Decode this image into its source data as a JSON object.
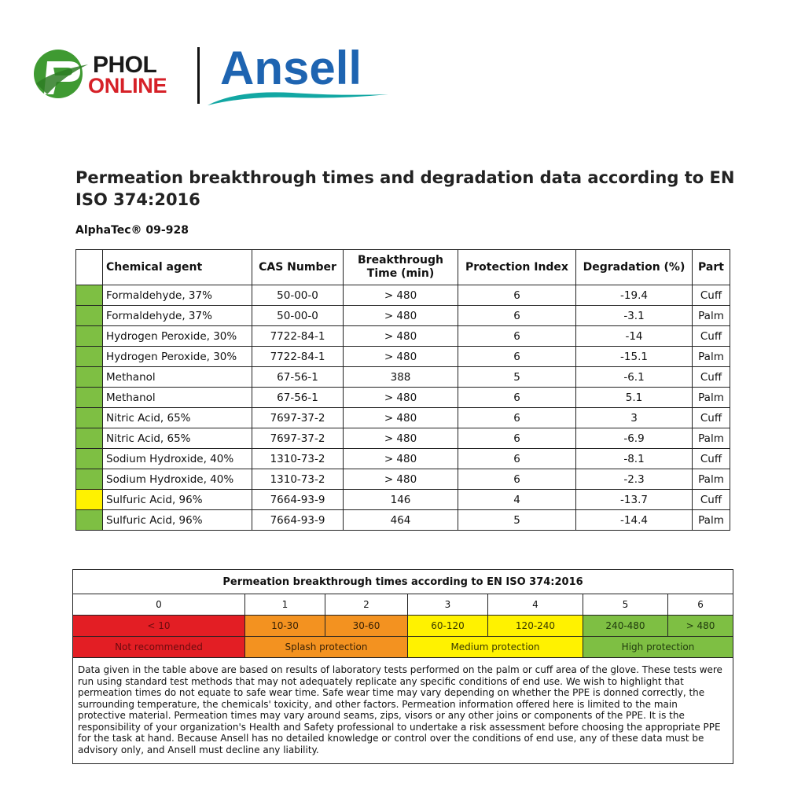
{
  "logos": {
    "phol_line1": "PHOL",
    "phol_line2": "ONLINE",
    "ansell": "Ansell",
    "colors": {
      "phol_green": "#3f9a32",
      "phol_red": "#d62128",
      "ansell_blue": "#1e64b1",
      "ansell_teal": "#12a7a3"
    }
  },
  "title": "Permeation breakthrough times and degradation data according to EN ISO 374:2016",
  "product": "AlphaTec® 09-928",
  "table": {
    "headers": {
      "chemical": "Chemical agent",
      "cas": "CAS Number",
      "breakthrough": "Breakthrough Time (min)",
      "protection": "Protection Index",
      "degradation": "Degradation (%)",
      "part": "Part"
    },
    "rows": [
      {
        "swatch": "#7ebf43",
        "chemical": "Formaldehyde, 37%",
        "cas": "50-00-0",
        "breakthrough": "> 480",
        "protection": "6",
        "degradation": "-19.4",
        "part": "Cuff"
      },
      {
        "swatch": "#7ebf43",
        "chemical": "Formaldehyde, 37%",
        "cas": "50-00-0",
        "breakthrough": "> 480",
        "protection": "6",
        "degradation": "-3.1",
        "part": "Palm"
      },
      {
        "swatch": "#7ebf43",
        "chemical": "Hydrogen Peroxide, 30%",
        "cas": "7722-84-1",
        "breakthrough": "> 480",
        "protection": "6",
        "degradation": "-14",
        "part": "Cuff"
      },
      {
        "swatch": "#7ebf43",
        "chemical": "Hydrogen Peroxide, 30%",
        "cas": "7722-84-1",
        "breakthrough": "> 480",
        "protection": "6",
        "degradation": "-15.1",
        "part": "Palm"
      },
      {
        "swatch": "#7ebf43",
        "chemical": "Methanol",
        "cas": "67-56-1",
        "breakthrough": "388",
        "protection": "5",
        "degradation": "-6.1",
        "part": "Cuff"
      },
      {
        "swatch": "#7ebf43",
        "chemical": "Methanol",
        "cas": "67-56-1",
        "breakthrough": "> 480",
        "protection": "6",
        "degradation": "5.1",
        "part": "Palm"
      },
      {
        "swatch": "#7ebf43",
        "chemical": "Nitric Acid, 65%",
        "cas": "7697-37-2",
        "breakthrough": "> 480",
        "protection": "6",
        "degradation": "3",
        "part": "Cuff"
      },
      {
        "swatch": "#7ebf43",
        "chemical": "Nitric Acid, 65%",
        "cas": "7697-37-2",
        "breakthrough": "> 480",
        "protection": "6",
        "degradation": "-6.9",
        "part": "Palm"
      },
      {
        "swatch": "#7ebf43",
        "chemical": "Sodium Hydroxide, 40%",
        "cas": "1310-73-2",
        "breakthrough": "> 480",
        "protection": "6",
        "degradation": "-8.1",
        "part": "Cuff"
      },
      {
        "swatch": "#7ebf43",
        "chemical": "Sodium Hydroxide, 40%",
        "cas": "1310-73-2",
        "breakthrough": "> 480",
        "protection": "6",
        "degradation": "-2.3",
        "part": "Palm"
      },
      {
        "swatch": "#fff200",
        "chemical": "Sulfuric Acid, 96%",
        "cas": "7664-93-9",
        "breakthrough": "146",
        "protection": "4",
        "degradation": "-13.7",
        "part": "Cuff"
      },
      {
        "swatch": "#7ebf43",
        "chemical": "Sulfuric Acid, 96%",
        "cas": "7664-93-9",
        "breakthrough": "464",
        "protection": "5",
        "degradation": "-14.4",
        "part": "Palm"
      }
    ]
  },
  "legend": {
    "title": "Permeation breakthrough times according to EN ISO 374:2016",
    "levels": [
      "0",
      "1",
      "2",
      "3",
      "4",
      "5",
      "6"
    ],
    "ranges": [
      "< 10",
      "10-30",
      "30-60",
      "60-120",
      "120-240",
      "240-480",
      "> 480"
    ],
    "protections": [
      "Not recommended",
      "Splash protection",
      "Medium protection",
      "High protection"
    ],
    "colors": {
      "red": "#e31e24",
      "orange": "#f39220",
      "yellow": "#fff200",
      "green": "#7ebf43"
    },
    "disclaimer": "Data given in the table above are based on results of laboratory tests performed on the palm or cuff area of the glove. These tests were run using standard test methods that may not adequately replicate any specific conditions of end use. We wish to highlight that permeation times do not equate to safe wear time. Safe wear time may vary depending on whether the PPE is donned correctly, the surrounding temperature, the chemicals' toxicity, and other factors. Permeation information offered here is limited to the main protective material. Permeation times may vary around seams, zips, visors or any other joins or components of the PPE. It is the responsibility of your organization's Health and Safety professional to undertake a risk assessment before choosing the appropriate PPE for the task at hand. Because Ansell has no detailed knowledge or control over the conditions of end use, any of these data must be advisory only, and Ansell must decline any liability."
  }
}
